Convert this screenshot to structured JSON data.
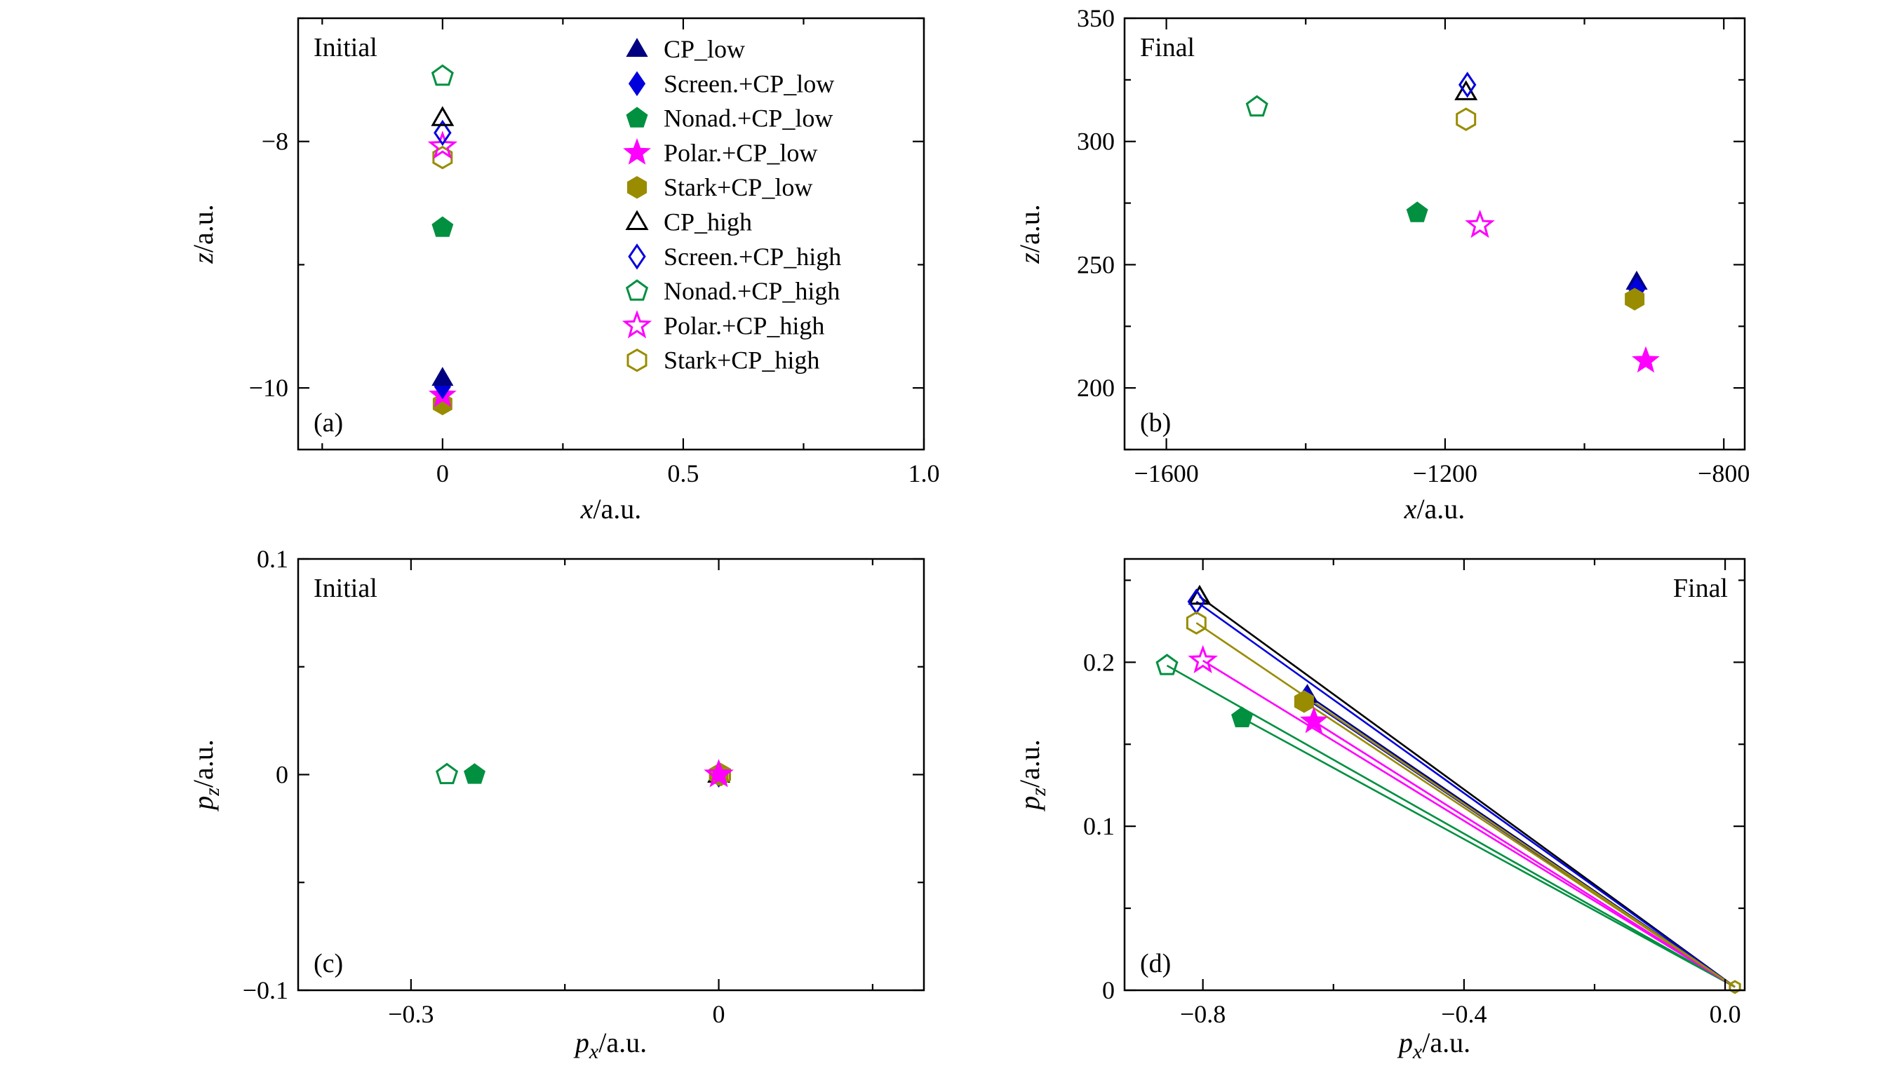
{
  "figure": {
    "background": "#ffffff",
    "frame_color": "#000000",
    "text_color": "#000000"
  },
  "series_styles": {
    "CP_low": {
      "label": "CP_low",
      "marker": "triangle",
      "color": "#000080",
      "filled": true
    },
    "Screen_CP_low": {
      "label": "Screen.+CP_low",
      "marker": "diamond",
      "color": "#0000dd",
      "filled": true
    },
    "Nonad_CP_low": {
      "label": "Nonad.+CP_low",
      "marker": "pentagon",
      "color": "#009040",
      "filled": true
    },
    "Polar_CP_low": {
      "label": "Polar.+CP_low",
      "marker": "star",
      "color": "#ff00ff",
      "filled": true
    },
    "Stark_CP_low": {
      "label": "Stark+CP_low",
      "marker": "hexagon",
      "color": "#998c00",
      "filled": true
    },
    "CP_high": {
      "label": "CP_high",
      "marker": "triangle",
      "color": "#000000",
      "filled": false
    },
    "Screen_CP_high": {
      "label": "Screen.+CP_high",
      "marker": "diamond",
      "color": "#0000dd",
      "filled": false
    },
    "Nonad_CP_high": {
      "label": "Nonad.+CP_high",
      "marker": "pentagon",
      "color": "#009040",
      "filled": false
    },
    "Polar_CP_high": {
      "label": "Polar.+CP_high",
      "marker": "star",
      "color": "#ff00ff",
      "filled": false
    },
    "Stark_CP_high": {
      "label": "Stark+CP_high",
      "marker": "hexagon",
      "color": "#998c00",
      "filled": false
    }
  },
  "legend": {
    "panel": "a",
    "entries": [
      "CP_low",
      "Screen_CP_low",
      "Nonad_CP_low",
      "Polar_CP_low",
      "Stark_CP_low",
      "CP_high",
      "Screen_CP_high",
      "Nonad_CP_high",
      "Polar_CP_high",
      "Stark_CP_high"
    ]
  },
  "chart_data": [
    {
      "id": "a",
      "type": "scatter",
      "corner_label": "(a)",
      "panel_title": "Initial",
      "title_pos": "top-left",
      "xlabel": {
        "var": "x",
        "sub": "",
        "unit": "/a.u."
      },
      "ylabel": {
        "var": "z",
        "sub": "",
        "unit": "/a.u."
      },
      "xlim": [
        -0.3,
        1.0
      ],
      "ylim": [
        -10.5,
        -7.0
      ],
      "xticks": [
        {
          "v": 0,
          "label": "0"
        },
        {
          "v": 0.5,
          "label": "0.5"
        },
        {
          "v": 1.0,
          "label": "1.0"
        }
      ],
      "yticks": [
        {
          "v": -10,
          "label": "−10"
        },
        {
          "v": -8,
          "label": "−8"
        }
      ],
      "has_legend": true,
      "points": [
        {
          "series": "Stark_CP_high",
          "x": 0,
          "y": -8.13
        },
        {
          "series": "Polar_CP_high",
          "x": 0,
          "y": -8.04
        },
        {
          "series": "Screen_CP_high",
          "x": 0,
          "y": -7.93
        },
        {
          "series": "CP_high",
          "x": 0,
          "y": -7.81
        },
        {
          "series": "Nonad_CP_high",
          "x": 0,
          "y": -7.47
        },
        {
          "series": "Nonad_CP_low",
          "x": 0,
          "y": -8.7
        },
        {
          "series": "Stark_CP_low",
          "x": 0,
          "y": -10.13
        },
        {
          "series": "Polar_CP_low",
          "x": 0,
          "y": -10.06
        },
        {
          "series": "Screen_CP_low",
          "x": 0,
          "y": -9.99
        },
        {
          "series": "CP_low",
          "x": 0,
          "y": -9.92
        }
      ]
    },
    {
      "id": "b",
      "type": "scatter",
      "corner_label": "(b)",
      "panel_title": "Final",
      "title_pos": "top-left",
      "xlabel": {
        "var": "x",
        "sub": "",
        "unit": "/a.u."
      },
      "ylabel": {
        "var": "z",
        "sub": "",
        "unit": "/a.u."
      },
      "xlim": [
        -1660,
        -770
      ],
      "ylim": [
        175,
        350
      ],
      "xticks": [
        {
          "v": -1600,
          "label": "−1600"
        },
        {
          "v": -1200,
          "label": "−1200"
        },
        {
          "v": -800,
          "label": "−800"
        }
      ],
      "yticks": [
        {
          "v": 200,
          "label": "200"
        },
        {
          "v": 250,
          "label": "250"
        },
        {
          "v": 300,
          "label": "300"
        },
        {
          "v": 350,
          "label": "350"
        }
      ],
      "has_legend": false,
      "points": [
        {
          "series": "Nonad_CP_high",
          "x": -1470,
          "y": 314
        },
        {
          "series": "Stark_CP_high",
          "x": -1170,
          "y": 309
        },
        {
          "series": "CP_high",
          "x": -1170,
          "y": 320
        },
        {
          "series": "Screen_CP_high",
          "x": -1168,
          "y": 323
        },
        {
          "series": "Nonad_CP_low",
          "x": -1240,
          "y": 271
        },
        {
          "series": "Polar_CP_high",
          "x": -1150,
          "y": 266
        },
        {
          "series": "CP_low",
          "x": -925,
          "y": 243
        },
        {
          "series": "Screen_CP_low",
          "x": -925,
          "y": 240
        },
        {
          "series": "Stark_CP_low",
          "x": -928,
          "y": 236
        },
        {
          "series": "Polar_CP_low",
          "x": -912,
          "y": 211
        }
      ]
    },
    {
      "id": "c",
      "type": "scatter",
      "corner_label": "(c)",
      "panel_title": "Initial",
      "title_pos": "top-left",
      "xlabel": {
        "var": "p",
        "sub": "x",
        "unit": "/a.u."
      },
      "ylabel": {
        "var": "p",
        "sub": "z",
        "unit": "/a.u."
      },
      "xlim": [
        -0.41,
        0.2
      ],
      "ylim": [
        -0.1,
        0.1
      ],
      "xticks": [
        {
          "v": -0.3,
          "label": "−0.3"
        },
        {
          "v": 0,
          "label": "0"
        }
      ],
      "yticks": [
        {
          "v": -0.1,
          "label": "−0.1"
        },
        {
          "v": 0,
          "label": "0"
        },
        {
          "v": 0.1,
          "label": "0.1"
        }
      ],
      "has_legend": false,
      "points": [
        {
          "series": "CP_low",
          "x": 0,
          "y": 0
        },
        {
          "series": "Screen_CP_low",
          "x": 0,
          "y": 0
        },
        {
          "series": "CP_high",
          "x": 0,
          "y": 0
        },
        {
          "series": "Screen_CP_high",
          "x": 0,
          "y": 0
        },
        {
          "series": "Stark_CP_low",
          "x": 0,
          "y": 0
        },
        {
          "series": "Polar_CP_low",
          "x": 0,
          "y": 0
        },
        {
          "series": "Stark_CP_high",
          "x": 0.002,
          "y": 0
        },
        {
          "series": "Polar_CP_high",
          "x": 0,
          "y": 0
        },
        {
          "series": "Nonad_CP_high",
          "x": -0.265,
          "y": 0
        },
        {
          "series": "Nonad_CP_low",
          "x": -0.238,
          "y": 0
        }
      ]
    },
    {
      "id": "d",
      "type": "scatter+lines",
      "corner_label": "(d)",
      "panel_title": "Final",
      "title_pos": "top-right",
      "xlabel": {
        "var": "p",
        "sub": "x",
        "unit": "/a.u."
      },
      "ylabel": {
        "var": "p",
        "sub": "z",
        "unit": "/a.u."
      },
      "xlim": [
        -0.92,
        0.03
      ],
      "ylim": [
        0,
        0.263
      ],
      "xticks": [
        {
          "v": -0.8,
          "label": "−0.8"
        },
        {
          "v": -0.4,
          "label": "−0.4"
        },
        {
          "v": 0,
          "label": "0.0"
        }
      ],
      "yticks": [
        {
          "v": 0,
          "label": "0"
        },
        {
          "v": 0.1,
          "label": "0.1"
        },
        {
          "v": 0.2,
          "label": "0.2"
        }
      ],
      "has_legend": false,
      "lines_origin": [
        0.015,
        0.002
      ],
      "origin_marker": "Stark_CP_high",
      "points": [
        {
          "series": "CP_high",
          "x": -0.805,
          "y": 0.24
        },
        {
          "series": "CP_low",
          "x": -0.64,
          "y": 0.18
        },
        {
          "series": "Screen_CP_high",
          "x": -0.81,
          "y": 0.237
        },
        {
          "series": "Screen_CP_low",
          "x": -0.642,
          "y": 0.178
        },
        {
          "series": "Nonad_CP_high",
          "x": -0.855,
          "y": 0.198
        },
        {
          "series": "Nonad_CP_low",
          "x": -0.74,
          "y": 0.166
        },
        {
          "series": "Polar_CP_high",
          "x": -0.8,
          "y": 0.201
        },
        {
          "series": "Polar_CP_low",
          "x": -0.63,
          "y": 0.164
        },
        {
          "series": "Stark_CP_high",
          "x": -0.81,
          "y": 0.224
        },
        {
          "series": "Stark_CP_low",
          "x": -0.645,
          "y": 0.176
        }
      ]
    }
  ]
}
